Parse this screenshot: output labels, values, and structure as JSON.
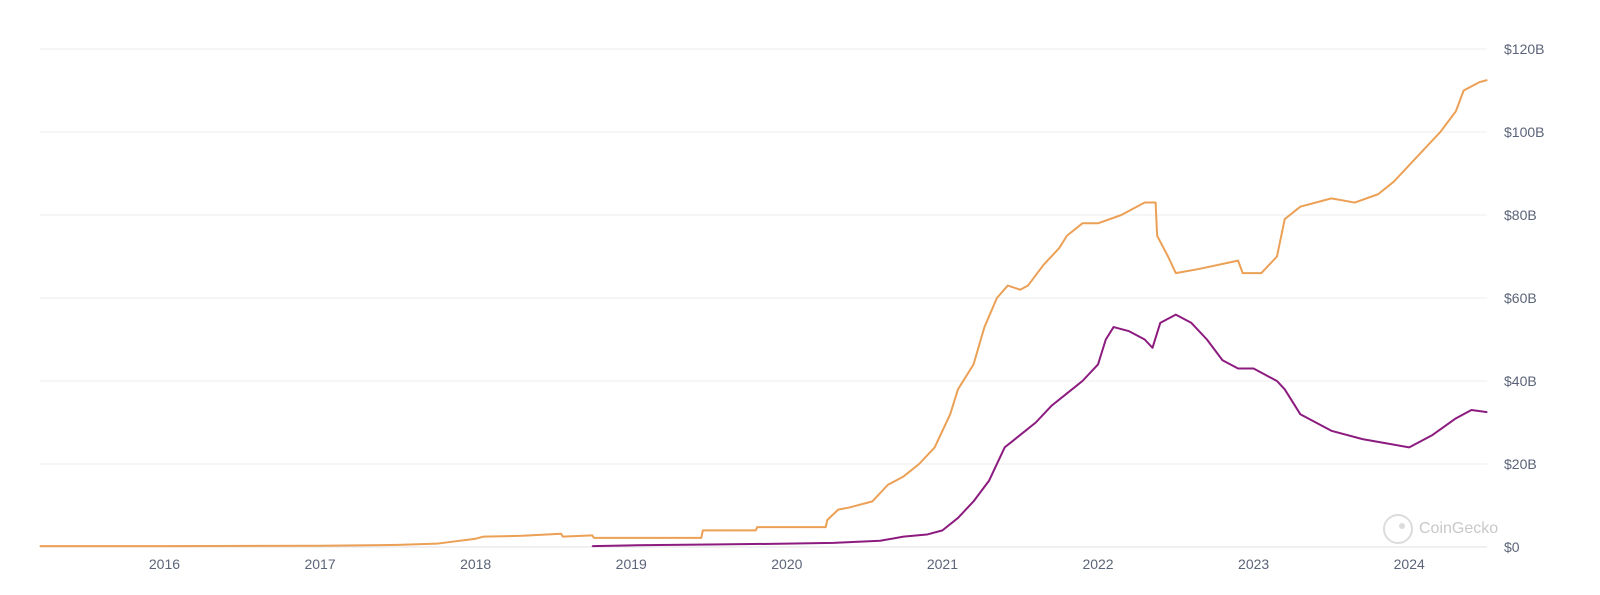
{
  "chart_data": {
    "type": "line",
    "title": "",
    "xlabel": "",
    "ylabel": "",
    "x_tick_labels": [
      "2016",
      "2017",
      "2018",
      "2019",
      "2020",
      "2021",
      "2022",
      "2023",
      "2024"
    ],
    "y_tick_labels": [
      "$0",
      "$20B",
      "$40B",
      "$60B",
      "$80B",
      "$100B",
      "$120B"
    ],
    "ylim": [
      0,
      120
    ],
    "xlim": [
      2015.2,
      2024.5
    ],
    "grid": true,
    "legend": "none",
    "series": [
      {
        "color": "#eba056",
        "x": [
          2015.2,
          2016.0,
          2017.0,
          2017.5,
          2017.75,
          2018.0,
          2018.05,
          2018.3,
          2018.55,
          2018.56,
          2018.75,
          2018.76,
          2019.0,
          2019.45,
          2019.46,
          2019.8,
          2019.81,
          2020.0,
          2020.25,
          2020.26,
          2020.33,
          2020.4,
          2020.55,
          2020.65,
          2020.75,
          2020.85,
          2020.95,
          2021.05,
          2021.1,
          2021.2,
          2021.27,
          2021.35,
          2021.42,
          2021.5,
          2021.55,
          2021.65,
          2021.75,
          2021.8,
          2021.9,
          2022.0,
          2022.15,
          2022.3,
          2022.37,
          2022.38,
          2022.45,
          2022.5,
          2022.65,
          2022.9,
          2022.93,
          2023.05,
          2023.1,
          2023.15,
          2023.2,
          2023.3,
          2023.5,
          2023.65,
          2023.8,
          2023.9,
          2024.0,
          2024.1,
          2024.2,
          2024.3,
          2024.35,
          2024.45,
          2024.5
        ],
        "values": [
          0.2,
          0.2,
          0.3,
          0.5,
          0.8,
          2.0,
          2.5,
          2.7,
          3.2,
          2.5,
          2.8,
          2.2,
          2.2,
          2.2,
          4.0,
          4.0,
          4.8,
          4.8,
          4.8,
          6.5,
          9.0,
          9.5,
          11.0,
          15.0,
          17.0,
          20.0,
          24.0,
          32.0,
          38.0,
          44.0,
          53.0,
          60.0,
          63.0,
          62.0,
          63.0,
          68.0,
          72.0,
          75.0,
          78.0,
          78.0,
          80.0,
          83.0,
          83.0,
          75.0,
          70.0,
          66.0,
          67.0,
          69.0,
          66.0,
          66.0,
          68.0,
          70.0,
          79.0,
          82.0,
          84.0,
          83.0,
          85.0,
          88.0,
          92.0,
          96.0,
          100.0,
          105.0,
          110.0,
          112.0,
          112.5
        ]
      },
      {
        "color": "#8c1b7f",
        "x": [
          2018.75,
          2019.0,
          2019.5,
          2020.0,
          2020.3,
          2020.6,
          2020.75,
          2020.9,
          2021.0,
          2021.1,
          2021.2,
          2021.3,
          2021.4,
          2021.5,
          2021.6,
          2021.7,
          2021.8,
          2021.9,
          2022.0,
          2022.05,
          2022.1,
          2022.2,
          2022.3,
          2022.35,
          2022.4,
          2022.5,
          2022.6,
          2022.7,
          2022.8,
          2022.9,
          2023.0,
          2023.15,
          2023.2,
          2023.3,
          2023.5,
          2023.7,
          2023.85,
          2024.0,
          2024.1,
          2024.15,
          2024.3,
          2024.4,
          2024.5
        ],
        "values": [
          0.2,
          0.4,
          0.6,
          0.8,
          1.0,
          1.5,
          2.5,
          3.0,
          4.0,
          7.0,
          11.0,
          16.0,
          24.0,
          27.0,
          30.0,
          34.0,
          37.0,
          40.0,
          44.0,
          50.0,
          53.0,
          52.0,
          50.0,
          48.0,
          54.0,
          56.0,
          54.0,
          50.0,
          45.0,
          43.0,
          43.0,
          40.0,
          38.0,
          32.0,
          28.0,
          26.0,
          25.0,
          24.0,
          26.0,
          27.0,
          31.0,
          33.0,
          32.5
        ]
      }
    ]
  },
  "watermark": {
    "text": "CoinGecko",
    "icon": "coingecko-logo-icon"
  }
}
